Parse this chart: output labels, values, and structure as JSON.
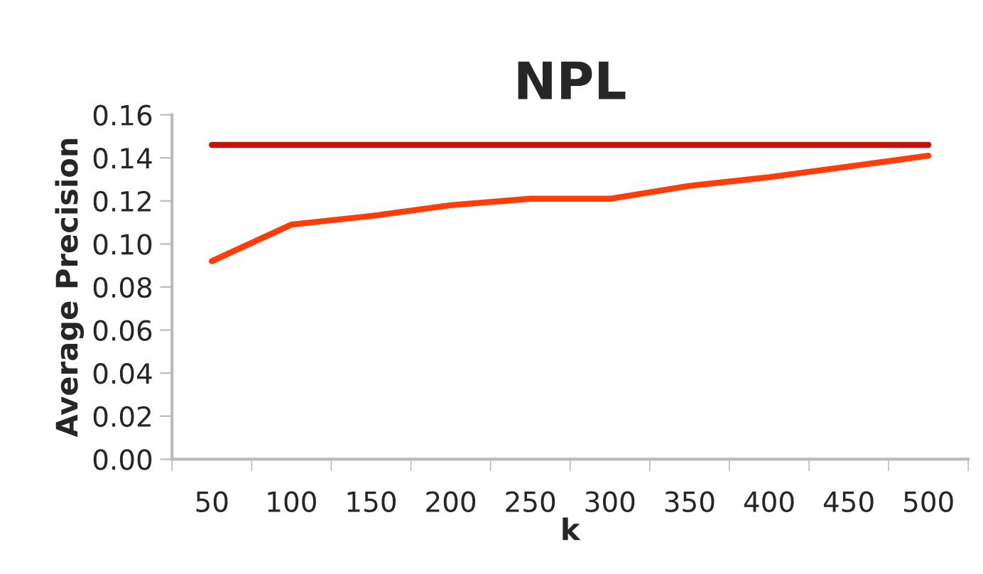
{
  "chart_data": {
    "type": "line",
    "title": "NPL",
    "xlabel": "k",
    "ylabel": "Average Precision",
    "categories": [
      "50",
      "100",
      "150",
      "200",
      "250",
      "300",
      "350",
      "400",
      "450",
      "500"
    ],
    "series": [
      {
        "color": "#c0150f",
        "values": [
          0.146,
          0.146,
          0.146,
          0.146,
          0.146,
          0.146,
          0.146,
          0.146,
          0.146,
          0.146
        ]
      },
      {
        "color": "#ff3d0a",
        "values": [
          0.092,
          0.109,
          0.113,
          0.118,
          0.121,
          0.121,
          0.127,
          0.131,
          0.136,
          0.141
        ]
      }
    ],
    "ylim": [
      0,
      0.16
    ],
    "yticks": [
      {
        "value": 0,
        "label": "0.00"
      },
      {
        "value": 0.02,
        "label": "0.02"
      },
      {
        "value": 0.04,
        "label": "0.04"
      },
      {
        "value": 0.06,
        "label": "0.06"
      },
      {
        "value": 0.08,
        "label": "0.08"
      },
      {
        "value": 0.1,
        "label": "0.10"
      },
      {
        "value": 0.12,
        "label": "0.12"
      },
      {
        "value": 0.14,
        "label": "0.14"
      },
      {
        "value": 0.16,
        "label": "0.16"
      }
    ],
    "grid": false,
    "marker": "none",
    "line_style": "solid"
  }
}
